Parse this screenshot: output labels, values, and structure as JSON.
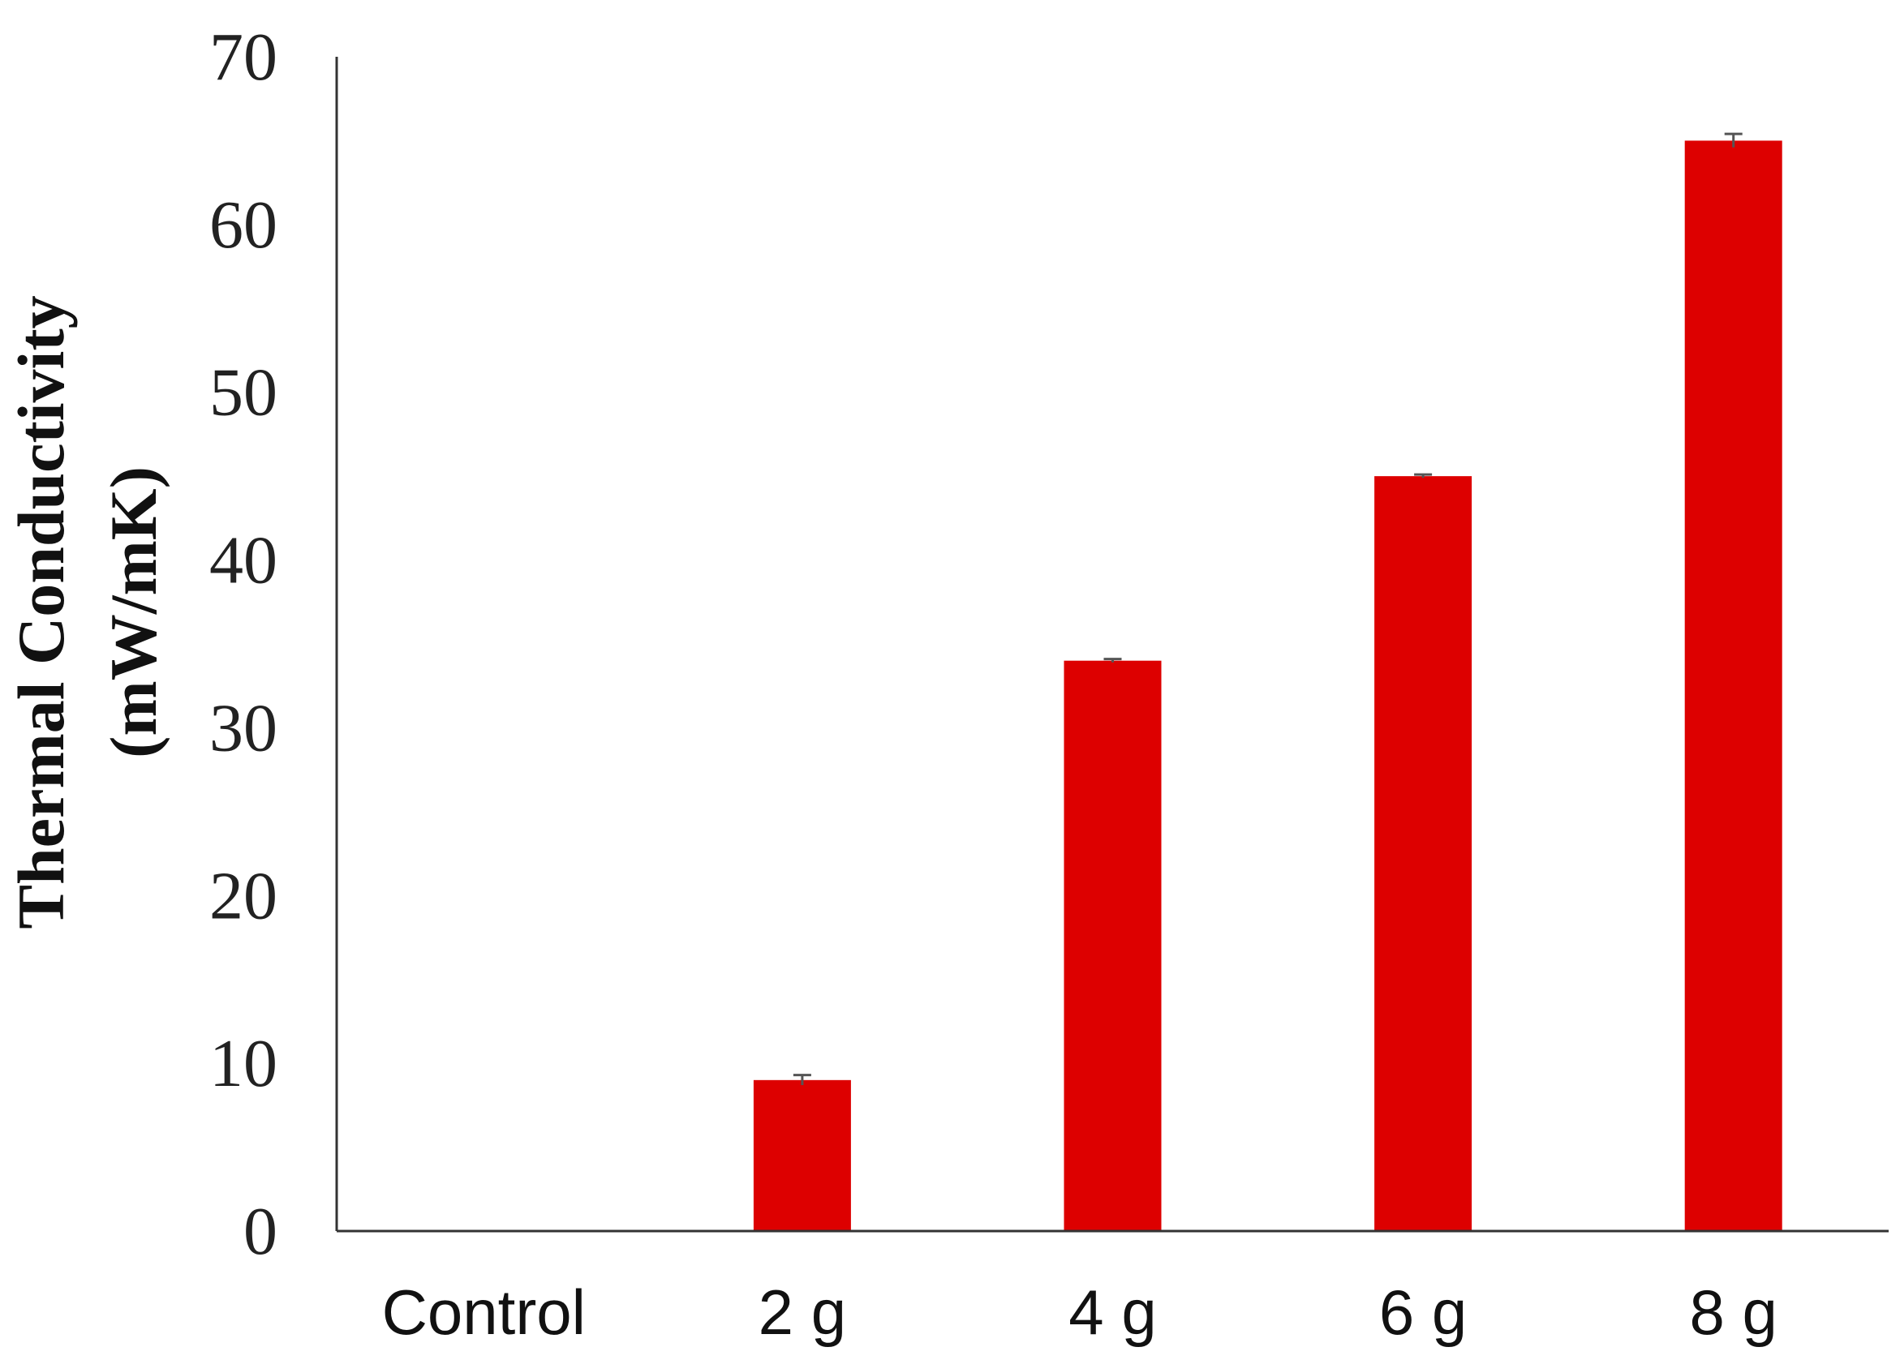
{
  "chart_data": {
    "type": "bar",
    "categories": [
      "Control",
      "2 g",
      "4 g",
      "6 g",
      "8 g"
    ],
    "values": [
      0,
      9,
      34,
      45,
      65
    ],
    "errors": [
      0,
      0.3,
      0.1,
      0.1,
      0.4
    ],
    "title": "",
    "xlabel": "",
    "ylabel_lines": [
      "Thermal Conductivity",
      "(mW/mK)"
    ],
    "ylim": [
      0,
      70
    ],
    "yticks": [
      0,
      10,
      20,
      30,
      40,
      50,
      60,
      70
    ],
    "grid": false,
    "legend": "none",
    "bar_color": "#dd0000",
    "error_bar_color": "#555555",
    "axis_color": "#333333"
  }
}
